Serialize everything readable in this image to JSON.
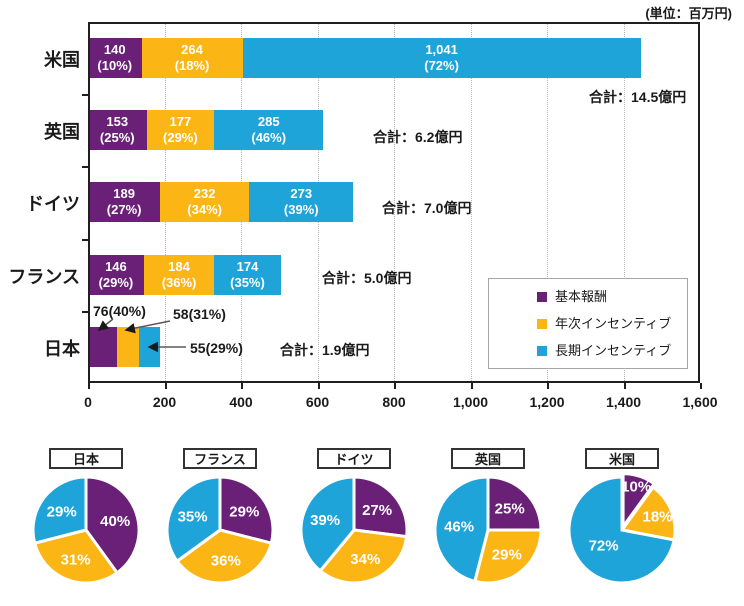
{
  "unit_label": "(単位：百万円)",
  "chart_data": [
    {
      "type": "bar",
      "subtype": "horizontal-stacked",
      "title": "",
      "unit": "百万円",
      "xlim": [
        0,
        1600
      ],
      "x_tick_interval": 200,
      "x_tick_labels": [
        "0",
        "200",
        "400",
        "600",
        "800",
        "1,000",
        "1,200",
        "1,400",
        "1,600"
      ],
      "grid": "vertical-dotted",
      "legend_position": "inside-bottom-right",
      "categories": [
        "米国",
        "英国",
        "ドイツ",
        "フランス",
        "日本"
      ],
      "series": [
        {
          "name": "基本報酬",
          "color": "#6A2077",
          "values": [
            140,
            153,
            189,
            146,
            76
          ]
        },
        {
          "name": "年次インセンティブ",
          "color": "#FBB616",
          "values": [
            264,
            177,
            232,
            184,
            58
          ]
        },
        {
          "name": "長期インセンティブ",
          "color": "#1EA4D9",
          "values": [
            1041,
            285,
            273,
            174,
            55
          ]
        }
      ],
      "rows": [
        {
          "category": "米国",
          "labels": "inside",
          "segment_labels": [
            [
              "140",
              "(10%)"
            ],
            [
              "264",
              "(18%)"
            ],
            [
              "1,041",
              "(72%)"
            ]
          ],
          "total": "合計：14.5億円"
        },
        {
          "category": "英国",
          "labels": "inside",
          "segment_labels": [
            [
              "153",
              "(25%)"
            ],
            [
              "177",
              "(29%)"
            ],
            [
              "285",
              "(46%)"
            ]
          ],
          "total": "合計：6.2億円"
        },
        {
          "category": "ドイツ",
          "labels": "inside",
          "segment_labels": [
            [
              "189",
              "(27%)"
            ],
            [
              "232",
              "(34%)"
            ],
            [
              "273",
              "(39%)"
            ]
          ],
          "total": "合計：7.0億円"
        },
        {
          "category": "フランス",
          "labels": "inside",
          "segment_labels": [
            [
              "146",
              "(29%)"
            ],
            [
              "184",
              "(36%)"
            ],
            [
              "174",
              "(35%)"
            ]
          ],
          "total": "合計：5.0億円"
        },
        {
          "category": "日本",
          "labels": "callout",
          "callouts": [
            "76(40%)",
            "58(31%)",
            "55(29%)"
          ],
          "total": "合計：1.9億円"
        }
      ]
    },
    {
      "type": "pie",
      "title": "日本",
      "labels": [
        "40%",
        "31%",
        "29%"
      ],
      "values": [
        40,
        31,
        29
      ]
    },
    {
      "type": "pie",
      "title": "フランス",
      "labels": [
        "29%",
        "36%",
        "35%"
      ],
      "values": [
        29,
        36,
        35
      ]
    },
    {
      "type": "pie",
      "title": "ドイツ",
      "labels": [
        "27%",
        "34%",
        "39%"
      ],
      "values": [
        27,
        34,
        39
      ]
    },
    {
      "type": "pie",
      "title": "英国",
      "labels": [
        "25%",
        "29%",
        "46%"
      ],
      "values": [
        25,
        29,
        46
      ]
    },
    {
      "type": "pie",
      "title": "米国",
      "labels": [
        "10%",
        "18%",
        "72%"
      ],
      "values": [
        10,
        18,
        72
      ],
      "exploded_slice": 0
    }
  ]
}
